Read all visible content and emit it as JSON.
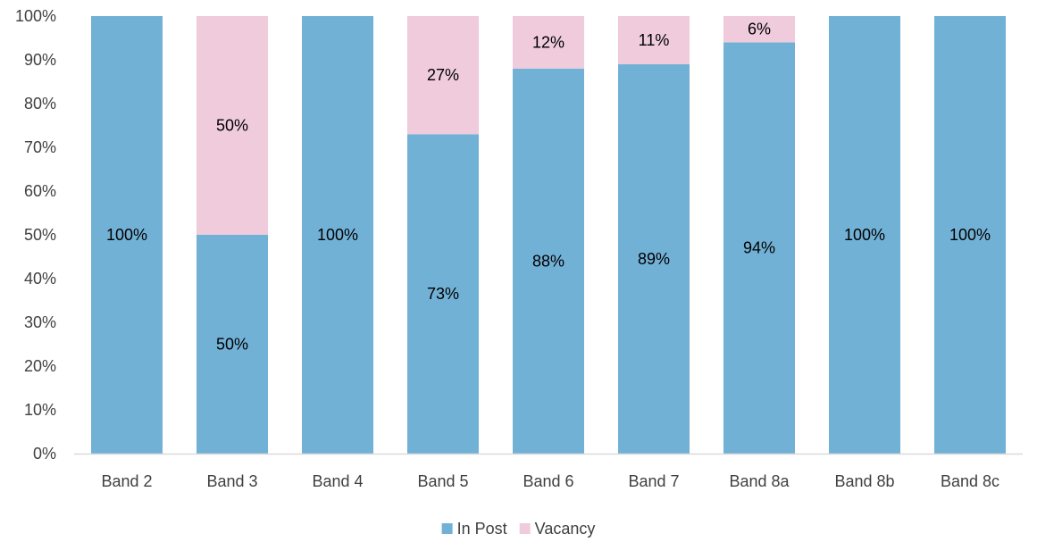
{
  "chart_data": {
    "type": "bar",
    "stacked": true,
    "categories": [
      "Band 2",
      "Band 3",
      "Band 4",
      "Band 5",
      "Band 6",
      "Band 7",
      "Band 8a",
      "Band 8b",
      "Band 8c"
    ],
    "series": [
      {
        "name": "In Post",
        "color": "#72B1D6",
        "values": [
          100,
          50,
          100,
          73,
          88,
          89,
          94,
          100,
          100
        ],
        "labels": [
          "100%",
          "50%",
          "100%",
          "73%",
          "88%",
          "89%",
          "94%",
          "100%",
          "100%"
        ]
      },
      {
        "name": "Vacancy",
        "color": "#EFCBDB",
        "values": [
          0,
          50,
          0,
          27,
          12,
          11,
          6,
          0,
          0
        ],
        "labels": [
          "",
          "50%",
          "",
          "27%",
          "12%",
          "11%",
          "6%",
          "",
          ""
        ]
      }
    ],
    "y_ticks": [
      "0%",
      "10%",
      "20%",
      "30%",
      "40%",
      "50%",
      "60%",
      "70%",
      "80%",
      "90%",
      "100%"
    ],
    "ylim": [
      0,
      100
    ],
    "grid": false,
    "legend_position": "bottom"
  }
}
